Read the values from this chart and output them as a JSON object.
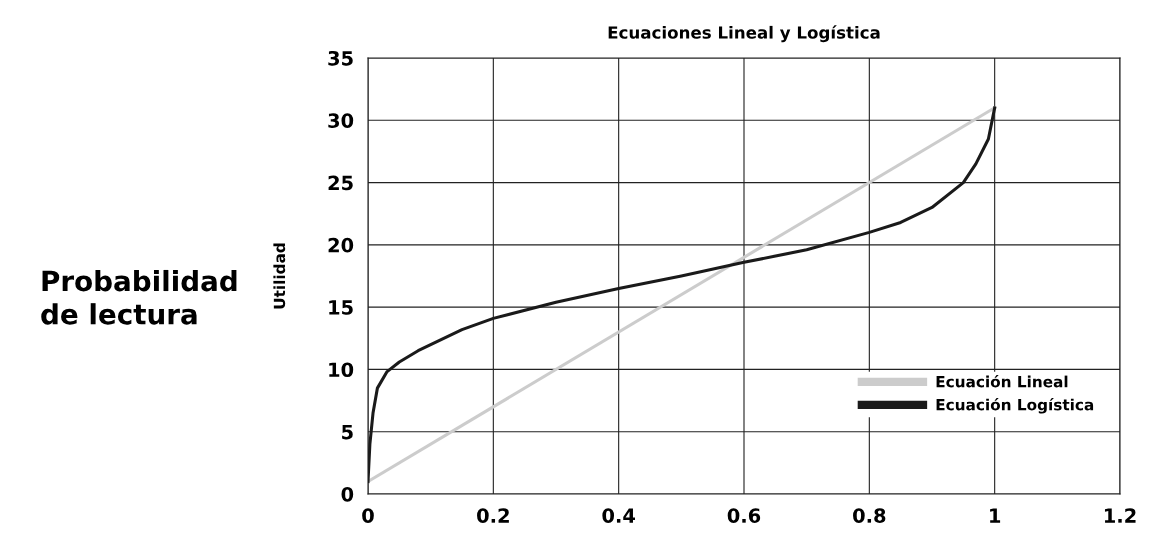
{
  "chart_data": {
    "type": "line",
    "title": "Ecuaciones Lineal y Logística",
    "ylabel": "Utilidad",
    "annotations": [
      "Probabilidad\nde lectura"
    ],
    "xlim": [
      0,
      1.2
    ],
    "xticks": [
      0,
      0.2,
      0.4,
      0.6,
      0.8,
      1,
      1.2
    ],
    "ylim": [
      0,
      35
    ],
    "yticks": [
      0,
      5,
      10,
      15,
      20,
      25,
      30,
      35
    ],
    "grid": true,
    "legend": "bottom right",
    "marker": "none",
    "line_style": "solid",
    "series": [
      {
        "name": "Ecuación Lineal",
        "color": "#cccccc",
        "x": [
          0,
          1
        ],
        "values": [
          1,
          31
        ]
      },
      {
        "name": "Ecuación Logística",
        "color": "#1a1a1a",
        "x": [
          0,
          0.003,
          0.008,
          0.015,
          0.03,
          0.05,
          0.08,
          0.1,
          0.15,
          0.2,
          0.3,
          0.4,
          0.5,
          0.6,
          0.7,
          0.8,
          0.85,
          0.9,
          0.95,
          0.97,
          0.99,
          1
        ],
        "values": [
          1,
          4,
          6.5,
          8.5,
          9.8,
          10.6,
          11.5,
          12,
          13.2,
          14.1,
          15.4,
          16.5,
          17.5,
          18.6,
          19.6,
          21,
          21.8,
          23,
          25,
          26.5,
          28.5,
          31
        ]
      }
    ]
  }
}
